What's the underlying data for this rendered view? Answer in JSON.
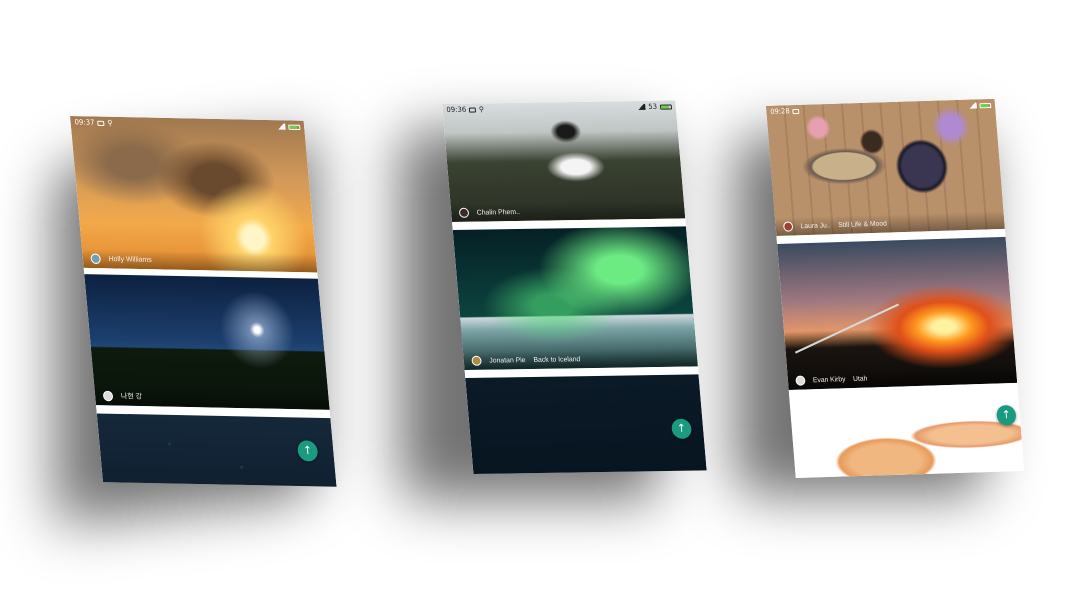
{
  "fab_glyph": "↑",
  "accent_color": "#1a9a7e",
  "phones": [
    {
      "time": "09:37",
      "cards": [
        {
          "author": "Holly Williams",
          "image": "sunset-clouds"
        },
        {
          "author": "나현 강",
          "image": "moon-over-hills"
        },
        {
          "image": "night-sky"
        }
      ]
    },
    {
      "time": "09:36",
      "battery": "53",
      "cards": [
        {
          "author": "Chalin Phem..",
          "image": "bride-on-hill"
        },
        {
          "author": "Jonatan Pie",
          "collection": "Back to Iceland",
          "image": "aurora-borealis"
        },
        {
          "image": "dark-sky"
        }
      ]
    },
    {
      "time": "09:28",
      "cards": [
        {
          "author": "Laura Ju..",
          "collection": "Still Life & Mood",
          "image": "table-flatlay"
        },
        {
          "author": "Evan Kirby",
          "collection": "Utah",
          "image": "campfire-marshmallow"
        },
        {
          "image": "cracked-eggs"
        }
      ]
    }
  ]
}
